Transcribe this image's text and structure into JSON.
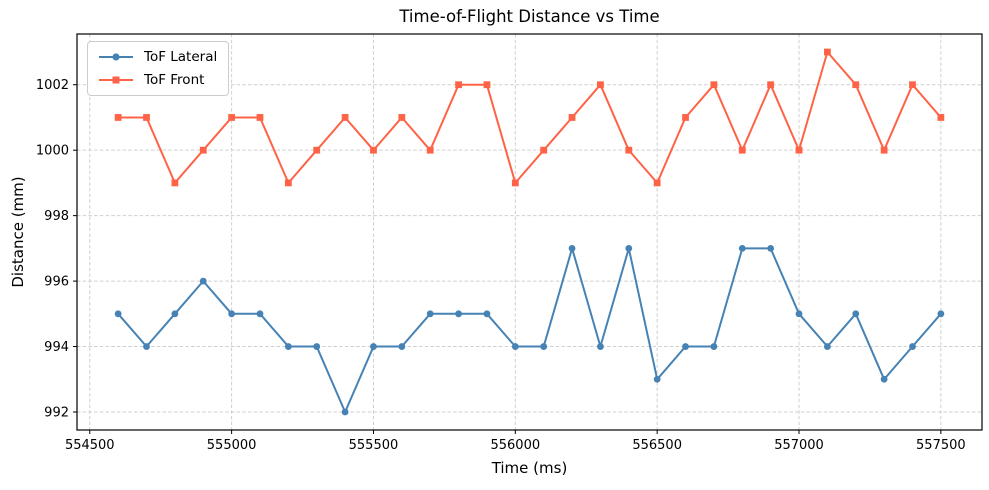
{
  "chart_data": {
    "type": "line",
    "title": "Time-of-Flight Distance vs Time",
    "xlabel": "Time (ms)",
    "ylabel": "Distance (mm)",
    "x": [
      554600,
      554700,
      554800,
      554900,
      555000,
      555100,
      555200,
      555300,
      555400,
      555500,
      555600,
      555700,
      555800,
      555900,
      556000,
      556100,
      556200,
      556300,
      556400,
      556500,
      556600,
      556700,
      556800,
      556900,
      557000,
      557100,
      557200,
      557300,
      557400,
      557500
    ],
    "series": [
      {
        "name": "ToF Lateral",
        "color": "#4682B4",
        "marker": "circle",
        "values": [
          995,
          994,
          995,
          996,
          995,
          995,
          994,
          994,
          992,
          994,
          994,
          995,
          995,
          995,
          994,
          994,
          997,
          994,
          997,
          993,
          994,
          994,
          997,
          997,
          995,
          994,
          995,
          993,
          994,
          995
        ]
      },
      {
        "name": "ToF Front",
        "color": "#FF6347",
        "marker": "square",
        "values": [
          1001,
          1001,
          999,
          1000,
          1001,
          1001,
          999,
          1000,
          1001,
          1000,
          1001,
          1000,
          1002,
          1002,
          999,
          1000,
          1001,
          1002,
          1000,
          999,
          1001,
          1002,
          1000,
          1002,
          1000,
          1003,
          1002,
          1000,
          1002,
          1001
        ]
      }
    ],
    "x_ticks": [
      554500,
      555000,
      555500,
      556000,
      556500,
      557000,
      557500
    ],
    "y_ticks": [
      992,
      994,
      996,
      998,
      1000,
      1002
    ],
    "xlim": [
      554455,
      557645
    ],
    "ylim": [
      991.45,
      1003.55
    ],
    "grid": true,
    "legend_position": "upper-left"
  }
}
